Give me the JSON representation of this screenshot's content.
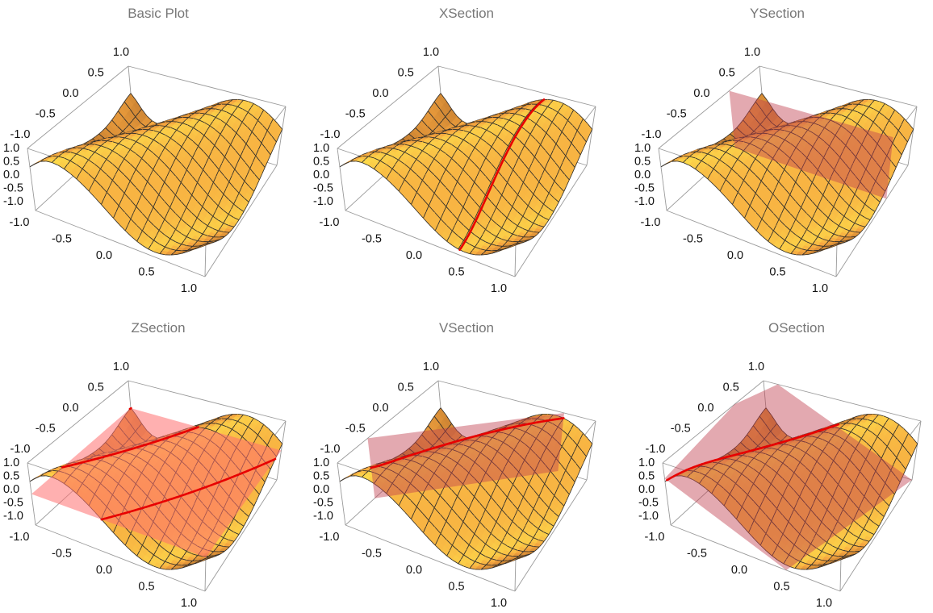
{
  "colors": {
    "surface_light": "#ffe94d",
    "surface_mid": "#f6a640",
    "surface_dark": "#9a5a22",
    "mesh": "#2b2b2b",
    "box": "#9a9a9a",
    "section_curve": "#e80000",
    "section_plane_z": "#ff7070",
    "section_plane": "#c0404f",
    "title": "#777777"
  },
  "chart_data": [
    {
      "type": "surface",
      "title": "Basic Plot",
      "section": "none",
      "xlim": [
        -1,
        1
      ],
      "ylim": [
        -1,
        1
      ],
      "zlim": [
        -1,
        1
      ],
      "x_ticks": [
        "-1.0",
        "-0.5",
        "0.0",
        "0.5",
        "1.0"
      ],
      "y_ticks": [
        "-1.0",
        "-0.5",
        "0.0",
        "0.5",
        "1.0"
      ],
      "z_ticks": [
        "-1.0",
        "-0.5",
        "0.0",
        "0.5",
        "1.0"
      ],
      "mesh": true
    },
    {
      "type": "surface",
      "title": "XSection",
      "section": "x-plane",
      "section_value": 0.35,
      "xlim": [
        -1,
        1
      ],
      "ylim": [
        -1,
        1
      ],
      "zlim": [
        -1,
        1
      ],
      "x_ticks": [
        "-1.0",
        "-0.5",
        "0.0",
        "0.5",
        "1.0"
      ],
      "y_ticks": [
        "-1.0",
        "-0.5",
        "0.0",
        "0.5",
        "1.0"
      ],
      "z_ticks": [
        "-1.0",
        "-0.5",
        "0.0",
        "0.5",
        "1.0"
      ],
      "mesh": true
    },
    {
      "type": "surface",
      "title": "YSection",
      "section": "y-plane",
      "section_value": 0.4,
      "xlim": [
        -1,
        1
      ],
      "ylim": [
        -1,
        1
      ],
      "zlim": [
        -1,
        1
      ],
      "x_ticks": [
        "-1.0",
        "-0.5",
        "0.0",
        "0.5",
        "1.0"
      ],
      "y_ticks": [
        "-1.0",
        "-0.5",
        "0.0",
        "0.5",
        "1.0"
      ],
      "z_ticks": [
        "-1.0",
        "-0.5",
        "0.0",
        "0.5",
        "1.0"
      ],
      "mesh": true
    },
    {
      "type": "surface",
      "title": "ZSection",
      "section": "z-plane",
      "section_value": 0.0,
      "xlim": [
        -1,
        1
      ],
      "ylim": [
        -1,
        1
      ],
      "zlim": [
        -1,
        1
      ],
      "x_ticks": [
        "-1.0",
        "-0.5",
        "0.0",
        "0.5",
        "1.0"
      ],
      "y_ticks": [
        "-1.0",
        "-0.5",
        "0.0",
        "0.5",
        "1.0"
      ],
      "z_ticks": [
        "-1.0",
        "-0.5",
        "0.0",
        "0.5",
        "1.0"
      ],
      "mesh": true
    },
    {
      "type": "surface",
      "title": "VSection",
      "section": "vertical-plane",
      "xlim": [
        -1,
        1
      ],
      "ylim": [
        -1,
        1
      ],
      "zlim": [
        -1,
        1
      ],
      "x_ticks": [
        "-1.0",
        "-0.5",
        "0.0",
        "0.5",
        "1.0"
      ],
      "y_ticks": [
        "-1.0",
        "-0.5",
        "0.0",
        "0.5",
        "1.0"
      ],
      "z_ticks": [
        "-1.0",
        "-0.5",
        "0.0",
        "0.5",
        "1.0"
      ],
      "mesh": true
    },
    {
      "type": "surface",
      "title": "OSection",
      "section": "oblique-plane",
      "xlim": [
        -1,
        1
      ],
      "ylim": [
        -1,
        1
      ],
      "zlim": [
        -1,
        1
      ],
      "x_ticks": [
        "-1.0",
        "-0.5",
        "0.0",
        "0.5",
        "1.0"
      ],
      "y_ticks": [
        "-1.0",
        "-0.5",
        "0.0",
        "0.5",
        "1.0"
      ],
      "z_ticks": [
        "-1.0",
        "-0.5",
        "0.0",
        "0.5",
        "1.0"
      ],
      "mesh": true
    }
  ]
}
